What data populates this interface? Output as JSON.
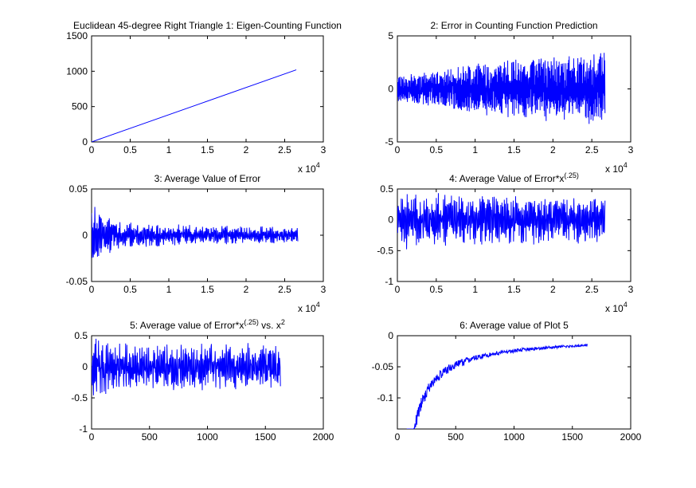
{
  "figure": {
    "background": "#ffffff",
    "line_color": "#0000ff"
  },
  "chart_data": [
    {
      "id": "p1",
      "type": "line",
      "title": "Euclidean 45-degree Right Triangle 1: Eigen-Counting Function",
      "xlim": [
        0,
        3
      ],
      "ylim": [
        0,
        1500
      ],
      "xticks": [
        0,
        0.5,
        1,
        1.5,
        2,
        2.5,
        3
      ],
      "xticklabels": [
        "0",
        "0.5",
        "1",
        "1.5",
        "2",
        "2.5",
        "3"
      ],
      "yticks": [
        0,
        500,
        1000,
        1500
      ],
      "yticklabels": [
        "0",
        "500",
        "1000",
        "1500"
      ],
      "x_exponent": {
        "base": "x 10",
        "power": "4"
      },
      "x": [
        0,
        2.65
      ],
      "y": [
        0,
        1020
      ]
    },
    {
      "id": "p2",
      "type": "line",
      "title": "2: Error in Counting Function Prediction",
      "xlim": [
        0,
        3
      ],
      "ylim": [
        -5,
        5
      ],
      "xticks": [
        0,
        0.5,
        1,
        1.5,
        2,
        2.5,
        3
      ],
      "xticklabels": [
        "0",
        "0.5",
        "1",
        "1.5",
        "2",
        "2.5",
        "3"
      ],
      "yticks": [
        -5,
        0,
        5
      ],
      "yticklabels": [
        "-5",
        "0",
        "5"
      ],
      "x_exponent": {
        "base": "x 10",
        "power": "4"
      },
      "signal": {
        "x_start": 0,
        "x_end": 2.67,
        "samples": 1200,
        "envelope": [
          [
            0,
            1.2
          ],
          [
            0.5,
            1.8
          ],
          [
            1.0,
            2.4
          ],
          [
            1.5,
            2.8
          ],
          [
            2.0,
            3.2
          ],
          [
            2.67,
            3.5
          ]
        ],
        "min_y": -4.1,
        "max_y": 3.7
      }
    },
    {
      "id": "p3",
      "type": "line",
      "title": "3: Average Value of Error",
      "xlim": [
        0,
        3
      ],
      "ylim": [
        -0.05,
        0.05
      ],
      "xticks": [
        0,
        0.5,
        1,
        1.5,
        2,
        2.5,
        3
      ],
      "xticklabels": [
        "0",
        "0.5",
        "1",
        "1.5",
        "2",
        "2.5",
        "3"
      ],
      "yticks": [
        -0.05,
        0,
        0.05
      ],
      "yticklabels": [
        "-0.05",
        "0",
        "0.05"
      ],
      "x_exponent": {
        "base": "x 10",
        "power": "4"
      },
      "signal": {
        "x_start": 0,
        "x_end": 2.67,
        "samples": 700,
        "envelope": [
          [
            0,
            0.04
          ],
          [
            0.1,
            0.03
          ],
          [
            0.3,
            0.016
          ],
          [
            1.0,
            0.012
          ],
          [
            2.0,
            0.01
          ],
          [
            2.67,
            0.009
          ]
        ],
        "min_y": -0.04,
        "max_y": 0.032
      }
    },
    {
      "id": "p4",
      "type": "line",
      "title": "4: Average Value of Error*x",
      "title_superscript": "(.25)",
      "xlim": [
        0,
        3
      ],
      "ylim": [
        -1,
        0.5
      ],
      "xticks": [
        0,
        0.5,
        1,
        1.5,
        2,
        2.5,
        3
      ],
      "xticklabels": [
        "0",
        "0.5",
        "1",
        "1.5",
        "2",
        "2.5",
        "3"
      ],
      "yticks": [
        -1,
        -0.5,
        0,
        0.5
      ],
      "yticklabels": [
        "-1",
        "-0.5",
        "0",
        "0.5"
      ],
      "x_exponent": {
        "base": "x 10",
        "power": "4"
      },
      "signal": {
        "x_start": 0,
        "x_end": 2.67,
        "samples": 700,
        "envelope": [
          [
            0,
            0.5
          ],
          [
            0.3,
            0.45
          ],
          [
            1.0,
            0.42
          ],
          [
            2.0,
            0.4
          ],
          [
            2.67,
            0.38
          ]
        ],
        "min_y": -0.62,
        "max_y": 0.45
      }
    },
    {
      "id": "p5",
      "type": "line",
      "title": "5: Average value of Error*x",
      "title_superscript": "(.25)",
      "title_tail": " vs. x",
      "title_tail_superscript": "2",
      "xlim": [
        0,
        2000
      ],
      "ylim": [
        -1,
        0.5
      ],
      "xticks": [
        0,
        500,
        1000,
        1500,
        2000
      ],
      "xticklabels": [
        "0",
        "500",
        "1000",
        "1500",
        "2000"
      ],
      "yticks": [
        -1,
        -0.5,
        0,
        0.5
      ],
      "yticklabels": [
        "-1",
        "-0.5",
        "0",
        "0.5"
      ],
      "signal": {
        "x_start": 0,
        "x_end": 1630,
        "samples": 600,
        "envelope": [
          [
            0,
            0.5
          ],
          [
            200,
            0.42
          ],
          [
            800,
            0.4
          ],
          [
            1630,
            0.38
          ]
        ],
        "min_y": -0.72,
        "max_y": 0.45
      }
    },
    {
      "id": "p6",
      "type": "line",
      "title": "6: Average value of Plot 5",
      "xlim": [
        0,
        2000
      ],
      "ylim": [
        -0.15,
        0
      ],
      "xticks": [
        0,
        500,
        1000,
        1500,
        2000
      ],
      "xticklabels": [
        "0",
        "500",
        "1000",
        "1500",
        "2000"
      ],
      "yticks": [
        -0.1,
        -0.05,
        0
      ],
      "yticklabels": [
        "-0.1",
        "-0.05",
        "0"
      ],
      "signal": {
        "x_start": 80,
        "x_end": 1630,
        "samples": 500,
        "trend": "decay",
        "min_y": -0.15,
        "max_y": -0.006
      }
    }
  ]
}
